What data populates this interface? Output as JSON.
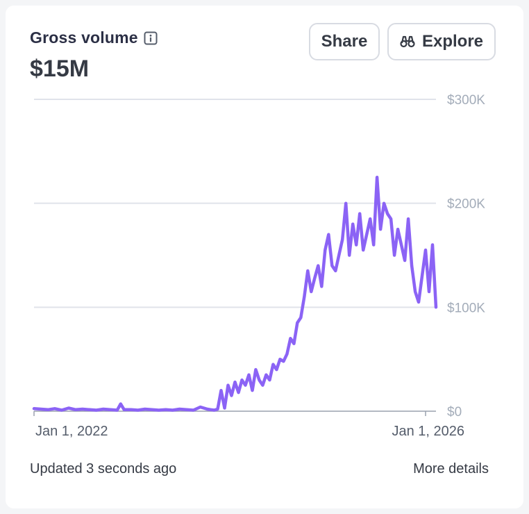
{
  "card": {
    "title": "Gross volume",
    "info_icon": "info-icon",
    "total": "$15M",
    "share_label": "Share",
    "explore_label": "Explore",
    "explore_icon": "binoculars-icon",
    "updated_text": "Updated 3 seconds ago",
    "more_details_label": "More details"
  },
  "colors": {
    "line": "#8b63f5",
    "grid": "#e0e3ea",
    "text": "#353a44",
    "muted": "#a3acb9"
  },
  "chart_data": {
    "type": "line",
    "title": "Gross volume",
    "xlabel": "",
    "ylabel": "",
    "ylim": [
      0,
      300000
    ],
    "y_ticks": [
      {
        "value": 300000,
        "label": "$300K"
      },
      {
        "value": 200000,
        "label": "$200K"
      },
      {
        "value": 100000,
        "label": "$100K"
      },
      {
        "value": 0,
        "label": "$0"
      }
    ],
    "x_ticks": [
      {
        "value": 0,
        "label": "Jan 1, 2022",
        "align": "start"
      },
      {
        "value": 226,
        "label": "Jan 1, 2026",
        "align": "end"
      }
    ],
    "xlim": [
      0,
      232
    ],
    "series": [
      {
        "name": "Gross volume",
        "x": [
          0,
          4,
          8,
          12,
          16,
          20,
          24,
          28,
          32,
          36,
          40,
          44,
          48,
          50,
          52,
          56,
          60,
          64,
          68,
          72,
          76,
          80,
          84,
          88,
          92,
          96,
          100,
          102,
          104,
          106,
          108,
          110,
          112,
          114,
          116,
          118,
          120,
          122,
          124,
          126,
          128,
          130,
          132,
          134,
          136,
          138,
          140,
          142,
          144,
          146,
          148,
          150,
          152,
          154,
          156,
          158,
          160,
          162,
          164,
          166,
          168,
          170,
          172,
          174,
          176,
          178,
          180,
          182,
          184,
          186,
          188,
          190,
          192,
          194,
          196,
          198,
          200,
          202,
          204,
          206,
          208,
          210,
          212,
          214,
          216,
          218,
          220,
          222,
          224,
          226,
          228,
          230,
          232
        ],
        "values": [
          2500,
          2000,
          1500,
          2500,
          1000,
          3000,
          1500,
          2000,
          1500,
          1000,
          2000,
          1500,
          1000,
          7000,
          1500,
          1500,
          1000,
          2000,
          1500,
          1000,
          1500,
          1000,
          2000,
          1500,
          1000,
          4000,
          2000,
          1500,
          1000,
          2000,
          20000,
          3000,
          25000,
          15000,
          28000,
          18000,
          30000,
          25000,
          35000,
          20000,
          40000,
          30000,
          25000,
          35000,
          30000,
          45000,
          40000,
          50000,
          48000,
          55000,
          70000,
          65000,
          85000,
          90000,
          110000,
          135000,
          115000,
          128000,
          140000,
          120000,
          155000,
          170000,
          140000,
          135000,
          150000,
          165000,
          200000,
          150000,
          180000,
          160000,
          190000,
          155000,
          170000,
          185000,
          160000,
          225000,
          175000,
          200000,
          190000,
          185000,
          150000,
          175000,
          160000,
          145000,
          185000,
          140000,
          115000,
          105000,
          130000,
          155000,
          115000,
          160000,
          100000
        ]
      }
    ]
  }
}
